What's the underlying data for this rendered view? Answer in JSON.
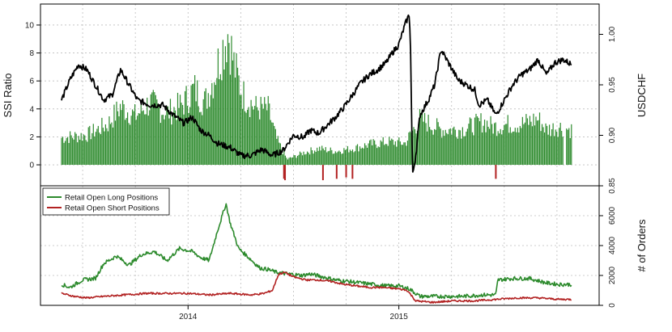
{
  "chart_data": [
    {
      "type": "bar+line",
      "panel": "top",
      "title": "",
      "ylabel_left": "SSI Ratio",
      "ylabel_right": "USDCHF",
      "ylim_left": [
        -1.5,
        11.5
      ],
      "ylim_right": [
        0.85,
        1.03
      ],
      "yticks_left": [
        0,
        2,
        4,
        6,
        8,
        10
      ],
      "yticks_right": [
        0.85,
        0.9,
        0.95,
        1.0
      ],
      "yticks_right_labels": [
        "0.85",
        "0.90",
        "0.95",
        "1.00"
      ],
      "xlim": [
        2013.3,
        2015.95
      ],
      "grid": true,
      "ssi_keyframes": [
        [
          2013.4,
          2.0
        ],
        [
          2013.52,
          2.2
        ],
        [
          2013.62,
          3.0
        ],
        [
          2013.68,
          4.3
        ],
        [
          2013.75,
          3.6
        ],
        [
          2013.82,
          4.6
        ],
        [
          2013.9,
          3.8
        ],
        [
          2013.97,
          4.4
        ],
        [
          2014.03,
          5.6
        ],
        [
          2014.08,
          4.6
        ],
        [
          2014.13,
          6.8
        ],
        [
          2014.16,
          8.4
        ],
        [
          2014.19,
          9.8
        ],
        [
          2014.22,
          7.2
        ],
        [
          2014.26,
          5.2
        ],
        [
          2014.32,
          4.2
        ],
        [
          2014.38,
          4.1
        ],
        [
          2014.42,
          1.9
        ],
        [
          2014.47,
          0.4
        ],
        [
          2014.55,
          0.9
        ],
        [
          2014.62,
          1.2
        ],
        [
          2014.7,
          1.0
        ],
        [
          2014.78,
          1.2
        ],
        [
          2014.86,
          1.5
        ],
        [
          2014.95,
          1.7
        ],
        [
          2015.03,
          1.6
        ],
        [
          2015.1,
          3.4
        ],
        [
          2015.2,
          2.6
        ],
        [
          2015.3,
          2.6
        ],
        [
          2015.4,
          3.2
        ],
        [
          2015.45,
          2.8
        ],
        [
          2015.52,
          3.0
        ],
        [
          2015.58,
          3.0
        ],
        [
          2015.66,
          3.4
        ],
        [
          2015.7,
          2.6
        ],
        [
          2015.76,
          2.8
        ],
        [
          2015.82,
          2.6
        ]
      ],
      "short_bias_marks": [
        [
          2014.455,
          -1.0
        ],
        [
          2014.46,
          -1.1
        ],
        [
          2014.64,
          -1.1
        ],
        [
          2014.705,
          -1.0
        ],
        [
          2014.75,
          -0.9
        ],
        [
          2014.78,
          -1.0
        ],
        [
          2015.46,
          -1.0
        ]
      ],
      "usdchf_keyframes": [
        [
          2013.4,
          0.935
        ],
        [
          2013.44,
          0.955
        ],
        [
          2013.48,
          0.97
        ],
        [
          2013.52,
          0.965
        ],
        [
          2013.56,
          0.95
        ],
        [
          2013.6,
          0.935
        ],
        [
          2013.64,
          0.94
        ],
        [
          2013.68,
          0.965
        ],
        [
          2013.72,
          0.95
        ],
        [
          2013.76,
          0.935
        ],
        [
          2013.82,
          0.93
        ],
        [
          2013.88,
          0.93
        ],
        [
          2013.93,
          0.92
        ],
        [
          2013.98,
          0.912
        ],
        [
          2014.02,
          0.918
        ],
        [
          2014.06,
          0.905
        ],
        [
          2014.1,
          0.9
        ],
        [
          2014.14,
          0.892
        ],
        [
          2014.2,
          0.888
        ],
        [
          2014.25,
          0.88
        ],
        [
          2014.3,
          0.88
        ],
        [
          2014.35,
          0.886
        ],
        [
          2014.4,
          0.88
        ],
        [
          2014.45,
          0.885
        ],
        [
          2014.5,
          0.9
        ],
        [
          2014.55,
          0.898
        ],
        [
          2014.58,
          0.905
        ],
        [
          2014.62,
          0.902
        ],
        [
          2014.66,
          0.91
        ],
        [
          2014.7,
          0.918
        ],
        [
          2014.74,
          0.928
        ],
        [
          2014.78,
          0.94
        ],
        [
          2014.82,
          0.952
        ],
        [
          2014.86,
          0.96
        ],
        [
          2014.9,
          0.965
        ],
        [
          2014.94,
          0.972
        ],
        [
          2014.97,
          0.982
        ],
        [
          2015.0,
          0.99
        ],
        [
          2015.03,
          1.01
        ],
        [
          2015.05,
          1.02
        ],
        [
          2015.055,
          0.99
        ],
        [
          2015.065,
          0.86
        ],
        [
          2015.08,
          0.88
        ],
        [
          2015.1,
          0.92
        ],
        [
          2015.14,
          0.935
        ],
        [
          2015.17,
          0.95
        ],
        [
          2015.2,
          0.985
        ],
        [
          2015.24,
          0.97
        ],
        [
          2015.28,
          0.955
        ],
        [
          2015.32,
          0.95
        ],
        [
          2015.36,
          0.945
        ],
        [
          2015.38,
          0.93
        ],
        [
          2015.42,
          0.935
        ],
        [
          2015.46,
          0.92
        ],
        [
          2015.5,
          0.935
        ],
        [
          2015.54,
          0.95
        ],
        [
          2015.58,
          0.96
        ],
        [
          2015.62,
          0.965
        ],
        [
          2015.66,
          0.975
        ],
        [
          2015.7,
          0.96
        ],
        [
          2015.74,
          0.972
        ],
        [
          2015.78,
          0.975
        ],
        [
          2015.82,
          0.97
        ]
      ]
    },
    {
      "type": "line",
      "panel": "bottom",
      "title": "",
      "ylabel_right": "# of Orders",
      "ylim": [
        0,
        8000
      ],
      "yticks_right": [
        0,
        2000,
        4000,
        6000
      ],
      "yticks_right_labels": [
        "0",
        "2000",
        "4000",
        "6000"
      ],
      "xticks": [
        2014.0,
        2015.0
      ],
      "xtick_labels": [
        "2014",
        "2015"
      ],
      "grid": true,
      "legend_position": "top-left",
      "series": [
        {
          "name": "Retail Open Long Positions",
          "color": "#2c8a2c",
          "keyframes": [
            [
              2013.4,
              1400
            ],
            [
              2013.44,
              1200
            ],
            [
              2013.5,
              1700
            ],
            [
              2013.56,
              1800
            ],
            [
              2013.6,
              2800
            ],
            [
              2013.66,
              3300
            ],
            [
              2013.72,
              2700
            ],
            [
              2013.78,
              3400
            ],
            [
              2013.84,
              3600
            ],
            [
              2013.9,
              3000
            ],
            [
              2013.96,
              3800
            ],
            [
              2014.02,
              3600
            ],
            [
              2014.06,
              3200
            ],
            [
              2014.1,
              3000
            ],
            [
              2014.14,
              5000
            ],
            [
              2014.18,
              6800
            ],
            [
              2014.2,
              5500
            ],
            [
              2014.24,
              3800
            ],
            [
              2014.28,
              3300
            ],
            [
              2014.34,
              2500
            ],
            [
              2014.38,
              2400
            ],
            [
              2014.42,
              2200
            ],
            [
              2014.48,
              2100
            ],
            [
              2014.54,
              2000
            ],
            [
              2014.58,
              2100
            ],
            [
              2014.64,
              1900
            ],
            [
              2014.7,
              1700
            ],
            [
              2014.76,
              1600
            ],
            [
              2014.82,
              1500
            ],
            [
              2014.88,
              1400
            ],
            [
              2014.94,
              1300
            ],
            [
              2015.0,
              1300
            ],
            [
              2015.05,
              1100
            ],
            [
              2015.1,
              600
            ],
            [
              2015.2,
              600
            ],
            [
              2015.3,
              600
            ],
            [
              2015.4,
              700
            ],
            [
              2015.46,
              700
            ],
            [
              2015.47,
              1700
            ],
            [
              2015.54,
              1800
            ],
            [
              2015.62,
              1800
            ],
            [
              2015.7,
              1500
            ],
            [
              2015.76,
              1400
            ],
            [
              2015.82,
              1400
            ]
          ]
        },
        {
          "name": "Retail Open Short Positions",
          "color": "#b22222",
          "keyframes": [
            [
              2013.4,
              800
            ],
            [
              2013.46,
              600
            ],
            [
              2013.52,
              500
            ],
            [
              2013.6,
              600
            ],
            [
              2013.7,
              700
            ],
            [
              2013.8,
              800
            ],
            [
              2013.9,
              800
            ],
            [
              2014.0,
              800
            ],
            [
              2014.1,
              700
            ],
            [
              2014.2,
              800
            ],
            [
              2014.3,
              700
            ],
            [
              2014.36,
              800
            ],
            [
              2014.4,
              1000
            ],
            [
              2014.43,
              2100
            ],
            [
              2014.46,
              2200
            ],
            [
              2014.5,
              1900
            ],
            [
              2014.56,
              1700
            ],
            [
              2014.62,
              1700
            ],
            [
              2014.68,
              1600
            ],
            [
              2014.74,
              1400
            ],
            [
              2014.8,
              1300
            ],
            [
              2014.86,
              1200
            ],
            [
              2014.92,
              1200
            ],
            [
              2015.0,
              1100
            ],
            [
              2015.04,
              1000
            ],
            [
              2015.08,
              300
            ],
            [
              2015.16,
              200
            ],
            [
              2015.26,
              300
            ],
            [
              2015.36,
              300
            ],
            [
              2015.46,
              400
            ],
            [
              2015.56,
              500
            ],
            [
              2015.66,
              500
            ],
            [
              2015.76,
              400
            ],
            [
              2015.82,
              400
            ]
          ]
        }
      ]
    }
  ]
}
